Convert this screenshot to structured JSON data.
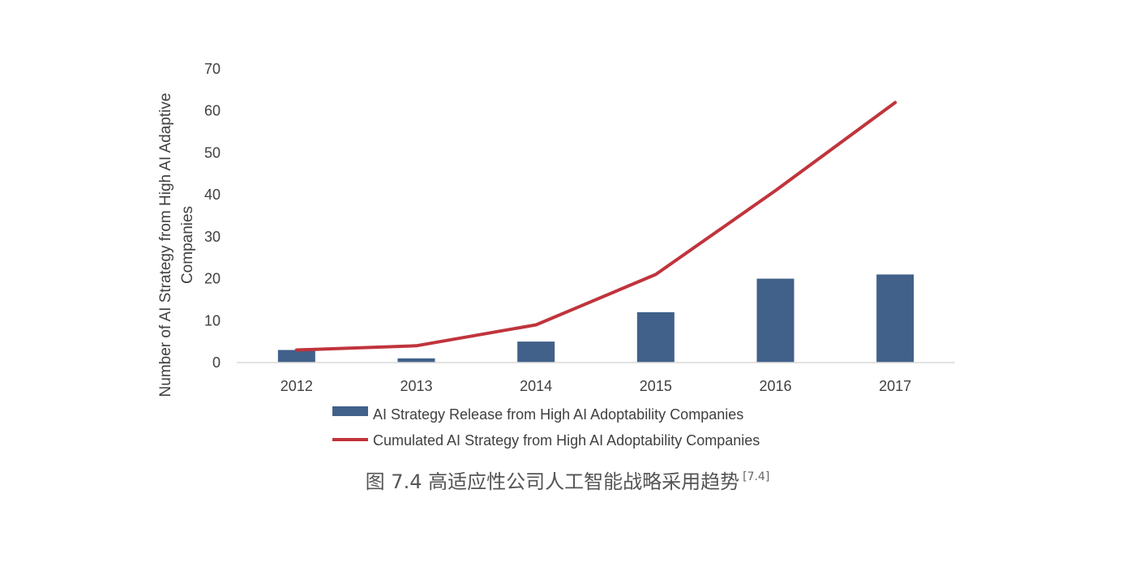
{
  "chart_data": {
    "type": "bar+line",
    "categories": [
      "2012",
      "2013",
      "2014",
      "2015",
      "2016",
      "2017"
    ],
    "series": [
      {
        "name": "AI Strategy Release from High AI Adoptability Companies",
        "kind": "bar",
        "color": "#41608a",
        "values": [
          3,
          1,
          5,
          12,
          20,
          21
        ]
      },
      {
        "name": "Cumulated AI Strategy from High AI Adoptability Companies",
        "kind": "line",
        "color": "#c0343c",
        "values": [
          3,
          4,
          9,
          21,
          41,
          62
        ]
      }
    ],
    "ylabel_line1": "Number of AI Strategy from High AI Adaptive",
    "ylabel_line2": "Companies",
    "ylim": [
      0,
      70
    ],
    "yticks": [
      "0",
      "10",
      "20",
      "30",
      "40",
      "50",
      "60",
      "70"
    ],
    "grid": false,
    "legend_position": "bottom"
  },
  "caption": {
    "text": "图 7.4 高适应性公司人工智能战略采用趋势",
    "ref": "[7.4]"
  }
}
